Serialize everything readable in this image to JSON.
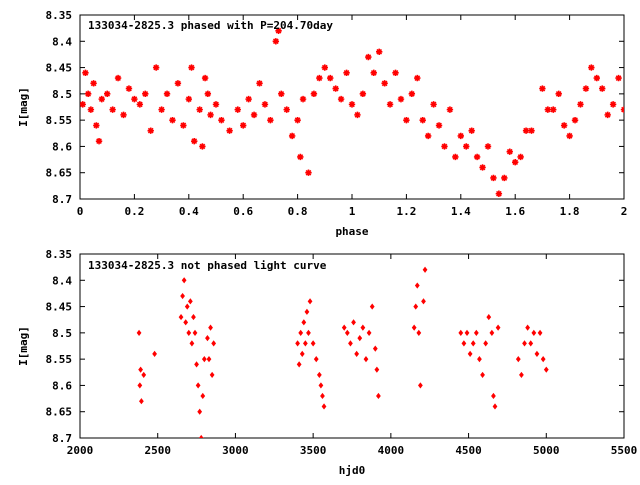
{
  "colors": {
    "points": "#ff0000",
    "axis": "#000000",
    "grid": "#a0a0a0",
    "background": "#ffffff"
  },
  "chart_data": [
    {
      "type": "scatter",
      "title": "133034-2825.3 phased with P=204.70day",
      "xlabel": "phase",
      "ylabel": "I[mag]",
      "xlim": [
        0,
        2
      ],
      "ylim": [
        8.7,
        8.35
      ],
      "y_inverted": true,
      "grid": false,
      "xticks": [
        0,
        0.2,
        0.4,
        0.6,
        0.8,
        1,
        1.2,
        1.4,
        1.6,
        1.8,
        2
      ],
      "xtick_labels": [
        "0",
        "0.2",
        "0.4",
        "0.6",
        "0.8",
        "1",
        "1.2",
        "1.4",
        "1.6",
        "1.8",
        "2"
      ],
      "yticks": [
        8.35,
        8.4,
        8.45,
        8.5,
        8.55,
        8.6,
        8.65,
        8.7
      ],
      "ytick_labels": [
        "8.35",
        "8.4",
        "8.45",
        "8.5",
        "8.55",
        "8.6",
        "8.65",
        "8.7"
      ],
      "marker": "star",
      "series": [
        {
          "points": [
            [
              0.01,
              8.52
            ],
            [
              0.02,
              8.46
            ],
            [
              0.03,
              8.5
            ],
            [
              0.04,
              8.53
            ],
            [
              0.05,
              8.48
            ],
            [
              0.06,
              8.56
            ],
            [
              0.07,
              8.59
            ],
            [
              0.08,
              8.51
            ],
            [
              0.1,
              8.5
            ],
            [
              0.12,
              8.53
            ],
            [
              0.14,
              8.47
            ],
            [
              0.16,
              8.54
            ],
            [
              0.18,
              8.49
            ],
            [
              0.2,
              8.51
            ],
            [
              0.22,
              8.52
            ],
            [
              0.24,
              8.5
            ],
            [
              0.26,
              8.57
            ],
            [
              0.28,
              8.45
            ],
            [
              0.3,
              8.53
            ],
            [
              0.32,
              8.5
            ],
            [
              0.34,
              8.55
            ],
            [
              0.36,
              8.48
            ],
            [
              0.38,
              8.56
            ],
            [
              0.4,
              8.51
            ],
            [
              0.41,
              8.45
            ],
            [
              0.42,
              8.59
            ],
            [
              0.44,
              8.53
            ],
            [
              0.45,
              8.6
            ],
            [
              0.46,
              8.47
            ],
            [
              0.47,
              8.5
            ],
            [
              0.48,
              8.54
            ],
            [
              0.5,
              8.52
            ],
            [
              0.52,
              8.55
            ],
            [
              0.55,
              8.57
            ],
            [
              0.58,
              8.53
            ],
            [
              0.6,
              8.56
            ],
            [
              0.62,
              8.51
            ],
            [
              0.64,
              8.54
            ],
            [
              0.66,
              8.48
            ],
            [
              0.68,
              8.52
            ],
            [
              0.7,
              8.55
            ],
            [
              0.72,
              8.4
            ],
            [
              0.73,
              8.38
            ],
            [
              0.74,
              8.5
            ],
            [
              0.76,
              8.53
            ],
            [
              0.78,
              8.58
            ],
            [
              0.8,
              8.55
            ],
            [
              0.81,
              8.62
            ],
            [
              0.82,
              8.51
            ],
            [
              0.84,
              8.65
            ],
            [
              0.86,
              8.5
            ],
            [
              0.88,
              8.47
            ],
            [
              0.9,
              8.45
            ],
            [
              0.92,
              8.47
            ],
            [
              0.94,
              8.49
            ],
            [
              0.96,
              8.51
            ],
            [
              0.98,
              8.46
            ],
            [
              1.0,
              8.52
            ],
            [
              1.02,
              8.54
            ],
            [
              1.04,
              8.5
            ],
            [
              1.06,
              8.43
            ],
            [
              1.08,
              8.46
            ],
            [
              1.1,
              8.42
            ],
            [
              1.12,
              8.48
            ],
            [
              1.14,
              8.52
            ],
            [
              1.16,
              8.46
            ],
            [
              1.18,
              8.51
            ],
            [
              1.2,
              8.55
            ],
            [
              1.22,
              8.5
            ],
            [
              1.24,
              8.47
            ],
            [
              1.26,
              8.55
            ],
            [
              1.28,
              8.58
            ],
            [
              1.3,
              8.52
            ],
            [
              1.32,
              8.56
            ],
            [
              1.34,
              8.6
            ],
            [
              1.36,
              8.53
            ],
            [
              1.38,
              8.62
            ],
            [
              1.4,
              8.58
            ],
            [
              1.42,
              8.6
            ],
            [
              1.44,
              8.57
            ],
            [
              1.46,
              8.62
            ],
            [
              1.48,
              8.64
            ],
            [
              1.5,
              8.6
            ],
            [
              1.52,
              8.66
            ],
            [
              1.54,
              8.69
            ],
            [
              1.56,
              8.66
            ],
            [
              1.58,
              8.61
            ],
            [
              1.6,
              8.63
            ],
            [
              1.62,
              8.62
            ],
            [
              1.64,
              8.57
            ],
            [
              1.66,
              8.57
            ],
            [
              1.7,
              8.49
            ],
            [
              1.72,
              8.53
            ],
            [
              1.74,
              8.53
            ],
            [
              1.76,
              8.5
            ],
            [
              1.78,
              8.56
            ],
            [
              1.8,
              8.58
            ],
            [
              1.82,
              8.55
            ],
            [
              1.84,
              8.52
            ],
            [
              1.86,
              8.49
            ],
            [
              1.88,
              8.45
            ],
            [
              1.9,
              8.47
            ],
            [
              1.92,
              8.49
            ],
            [
              1.94,
              8.54
            ],
            [
              1.96,
              8.52
            ],
            [
              1.98,
              8.47
            ],
            [
              2.0,
              8.53
            ]
          ]
        }
      ]
    },
    {
      "type": "scatter",
      "title": "133034-2825.3 not phased light curve",
      "xlabel": "hjd0",
      "ylabel": "I[mag]",
      "xlim": [
        2000,
        5500
      ],
      "ylim": [
        8.7,
        8.35
      ],
      "y_inverted": true,
      "grid": false,
      "xticks": [
        2000,
        2500,
        3000,
        3500,
        4000,
        4500,
        5000,
        5500
      ],
      "xtick_labels": [
        "2000",
        "2500",
        "3000",
        "3500",
        "4000",
        "4500",
        "5000",
        "5500"
      ],
      "yticks": [
        8.35,
        8.4,
        8.45,
        8.5,
        8.55,
        8.6,
        8.65,
        8.7
      ],
      "ytick_labels": [
        "8.35",
        "8.4",
        "8.45",
        "8.5",
        "8.55",
        "8.6",
        "8.65",
        "8.7"
      ],
      "marker": "diamond",
      "series": [
        {
          "points": [
            [
              2380,
              8.5
            ],
            [
              2385,
              8.6
            ],
            [
              2390,
              8.57
            ],
            [
              2395,
              8.63
            ],
            [
              2410,
              8.58
            ],
            [
              2480,
              8.54
            ],
            [
              2650,
              8.47
            ],
            [
              2660,
              8.43
            ],
            [
              2670,
              8.4
            ],
            [
              2680,
              8.48
            ],
            [
              2690,
              8.45
            ],
            [
              2700,
              8.5
            ],
            [
              2710,
              8.44
            ],
            [
              2720,
              8.52
            ],
            [
              2730,
              8.47
            ],
            [
              2740,
              8.5
            ],
            [
              2750,
              8.56
            ],
            [
              2760,
              8.6
            ],
            [
              2770,
              8.65
            ],
            [
              2780,
              8.7
            ],
            [
              2790,
              8.62
            ],
            [
              2800,
              8.55
            ],
            [
              2820,
              8.51
            ],
            [
              2830,
              8.55
            ],
            [
              2840,
              8.49
            ],
            [
              2850,
              8.58
            ],
            [
              2860,
              8.52
            ],
            [
              3400,
              8.52
            ],
            [
              3410,
              8.56
            ],
            [
              3420,
              8.5
            ],
            [
              3430,
              8.54
            ],
            [
              3440,
              8.48
            ],
            [
              3450,
              8.52
            ],
            [
              3460,
              8.46
            ],
            [
              3470,
              8.5
            ],
            [
              3480,
              8.44
            ],
            [
              3500,
              8.52
            ],
            [
              3520,
              8.55
            ],
            [
              3540,
              8.58
            ],
            [
              3550,
              8.6
            ],
            [
              3560,
              8.62
            ],
            [
              3570,
              8.64
            ],
            [
              3700,
              8.49
            ],
            [
              3720,
              8.5
            ],
            [
              3740,
              8.52
            ],
            [
              3760,
              8.48
            ],
            [
              3780,
              8.54
            ],
            [
              3800,
              8.51
            ],
            [
              3820,
              8.49
            ],
            [
              3840,
              8.55
            ],
            [
              3860,
              8.5
            ],
            [
              3880,
              8.45
            ],
            [
              3900,
              8.53
            ],
            [
              3910,
              8.57
            ],
            [
              3920,
              8.62
            ],
            [
              4150,
              8.49
            ],
            [
              4160,
              8.45
            ],
            [
              4170,
              8.41
            ],
            [
              4180,
              8.5
            ],
            [
              4190,
              8.6
            ],
            [
              4210,
              8.44
            ],
            [
              4220,
              8.38
            ],
            [
              4450,
              8.5
            ],
            [
              4470,
              8.52
            ],
            [
              4490,
              8.5
            ],
            [
              4510,
              8.54
            ],
            [
              4530,
              8.52
            ],
            [
              4550,
              8.5
            ],
            [
              4570,
              8.55
            ],
            [
              4590,
              8.58
            ],
            [
              4610,
              8.52
            ],
            [
              4630,
              8.47
            ],
            [
              4650,
              8.5
            ],
            [
              4660,
              8.62
            ],
            [
              4670,
              8.64
            ],
            [
              4690,
              8.49
            ],
            [
              4820,
              8.55
            ],
            [
              4840,
              8.58
            ],
            [
              4860,
              8.52
            ],
            [
              4880,
              8.49
            ],
            [
              4900,
              8.52
            ],
            [
              4920,
              8.5
            ],
            [
              4940,
              8.54
            ],
            [
              4960,
              8.5
            ],
            [
              4980,
              8.55
            ],
            [
              5000,
              8.57
            ]
          ]
        }
      ]
    }
  ]
}
